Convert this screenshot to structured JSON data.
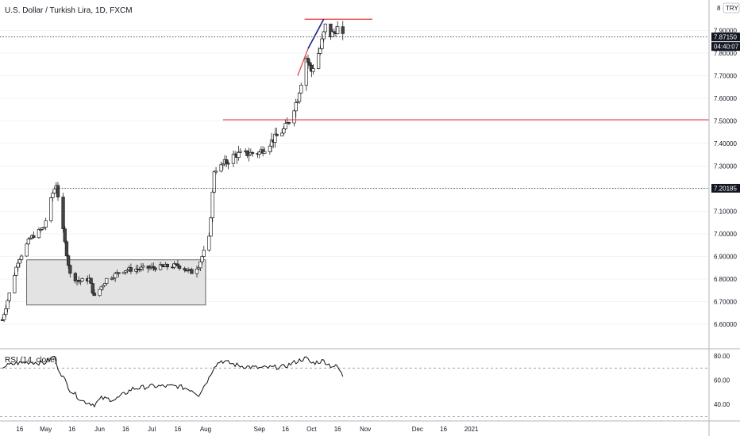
{
  "header": {
    "title": "U.S. Dollar / Turkish Lira, 1D, FXCM"
  },
  "currency_badge": "TRY",
  "price_axis": {
    "ticks": [
      "7.90000",
      "7.80000",
      "7.70000",
      "7.60000",
      "7.50000",
      "7.40000",
      "7.30000",
      "7.20000",
      "7.10000",
      "7.00000",
      "6.90000",
      "6.80000",
      "6.70000",
      "6.60000"
    ],
    "last_price_label": "7.87150",
    "countdown_label": "04:40:07",
    "marked_level_label": "7.20185",
    "top_partial_label": "8"
  },
  "rsi_panel": {
    "title": "RSI (14, close)",
    "ticks": [
      "80.00",
      "60.00",
      "40.00"
    ]
  },
  "time_axis": {
    "labels": [
      "16",
      "May",
      "16",
      "Jun",
      "16",
      "Jul",
      "16",
      "Aug",
      "Sep",
      "16",
      "Oct",
      "16",
      "Nov",
      "Dec",
      "16",
      "2021"
    ]
  },
  "colors": {
    "bull_candle": "#ffffff",
    "bear_candle": "#444444",
    "wick": "#222222",
    "resistance_line": "#e53935",
    "trend_up_line": "#e53935",
    "trend_blue_line": "#1a237e",
    "range_box_fill": "#e3e3e3",
    "rsi_line": "#111111",
    "last_price_tag": "#131722"
  },
  "chart_data": [
    {
      "type": "candlestick",
      "title": "U.S. Dollar / Turkish Lira, 1D, FXCM",
      "ylim": [
        6.55,
        7.97
      ],
      "y_tick_step": 0.1,
      "x_axis": "daily, April 2020 – January 2021",
      "series": [
        {
          "anchors": [
            [
              "2020-04-06",
              6.62
            ],
            [
              "2020-04-15",
              6.88
            ],
            [
              "2020-04-22",
              6.98
            ],
            [
              "2020-04-30",
              7.03
            ],
            [
              "2020-05-05",
              7.18
            ],
            [
              "2020-05-07",
              7.22
            ],
            [
              "2020-05-12",
              6.96
            ],
            [
              "2020-05-15",
              6.82
            ],
            [
              "2020-05-20",
              6.79
            ],
            [
              "2020-05-26",
              6.8
            ],
            [
              "2020-05-29",
              6.72
            ],
            [
              "2020-06-05",
              6.8
            ],
            [
              "2020-06-15",
              6.84
            ],
            [
              "2020-07-01",
              6.85
            ],
            [
              "2020-07-16",
              6.86
            ],
            [
              "2020-07-24",
              6.83
            ],
            [
              "2020-07-28",
              6.86
            ],
            [
              "2020-08-03",
              6.98
            ],
            [
              "2020-08-06",
              7.28
            ],
            [
              "2020-08-10",
              7.3
            ],
            [
              "2020-08-18",
              7.35
            ],
            [
              "2020-09-01",
              7.36
            ],
            [
              "2020-09-15",
              7.46
            ],
            [
              "2020-09-18",
              7.5
            ],
            [
              "2020-09-23",
              7.6
            ],
            [
              "2020-09-28",
              7.78
            ],
            [
              "2020-10-01",
              7.72
            ],
            [
              "2020-10-06",
              7.82
            ],
            [
              "2020-10-09",
              7.92
            ],
            [
              "2020-10-12",
              7.88
            ],
            [
              "2020-10-16",
              7.91
            ],
            [
              "2020-10-19",
              7.87
            ]
          ]
        }
      ],
      "annotations": {
        "resistance_level": 7.95,
        "support_level": 7.505,
        "marked_level": 7.20185,
        "last_price": 7.8715,
        "range_box": {
          "price_top": 6.885,
          "price_bottom": 6.685,
          "from": "2020-04-20",
          "to": "2020-08-01"
        },
        "trend_up": {
          "from": [
            "2020-09-23",
            7.7
          ],
          "to": [
            "2020-09-29",
            7.82
          ]
        },
        "trend_blue": {
          "from": [
            "2020-09-29",
            7.82
          ],
          "to": [
            "2020-10-08",
            7.95
          ]
        }
      }
    },
    {
      "type": "line",
      "title": "RSI (14, close)",
      "ylim": [
        30,
        86
      ],
      "bands": [
        70,
        30
      ],
      "series": [
        {
          "name": "RSI (14, close)",
          "points": [
            [
              "2020-04-06",
              71
            ],
            [
              "2020-04-14",
              74
            ],
            [
              "2020-04-22",
              75
            ],
            [
              "2020-04-30",
              74
            ],
            [
              "2020-05-06",
              80
            ],
            [
              "2020-05-07",
              73
            ],
            [
              "2020-05-15",
              52
            ],
            [
              "2020-05-22",
              43
            ],
            [
              "2020-05-29",
              40
            ],
            [
              "2020-06-02",
              45
            ],
            [
              "2020-06-10",
              44
            ],
            [
              "2020-06-20",
              53
            ],
            [
              "2020-07-01",
              55
            ],
            [
              "2020-07-16",
              55
            ],
            [
              "2020-07-24",
              52
            ],
            [
              "2020-07-28",
              48
            ],
            [
              "2020-08-03",
              62
            ],
            [
              "2020-08-06",
              72
            ],
            [
              "2020-08-10",
              76
            ],
            [
              "2020-08-20",
              72
            ],
            [
              "2020-09-01",
              70
            ],
            [
              "2020-09-15",
              71
            ],
            [
              "2020-09-20",
              74
            ],
            [
              "2020-09-25",
              77
            ],
            [
              "2020-09-28",
              78
            ],
            [
              "2020-10-01",
              74
            ],
            [
              "2020-10-08",
              76
            ],
            [
              "2020-10-12",
              72
            ],
            [
              "2020-10-16",
              71
            ],
            [
              "2020-10-19",
              63
            ]
          ]
        }
      ]
    }
  ]
}
